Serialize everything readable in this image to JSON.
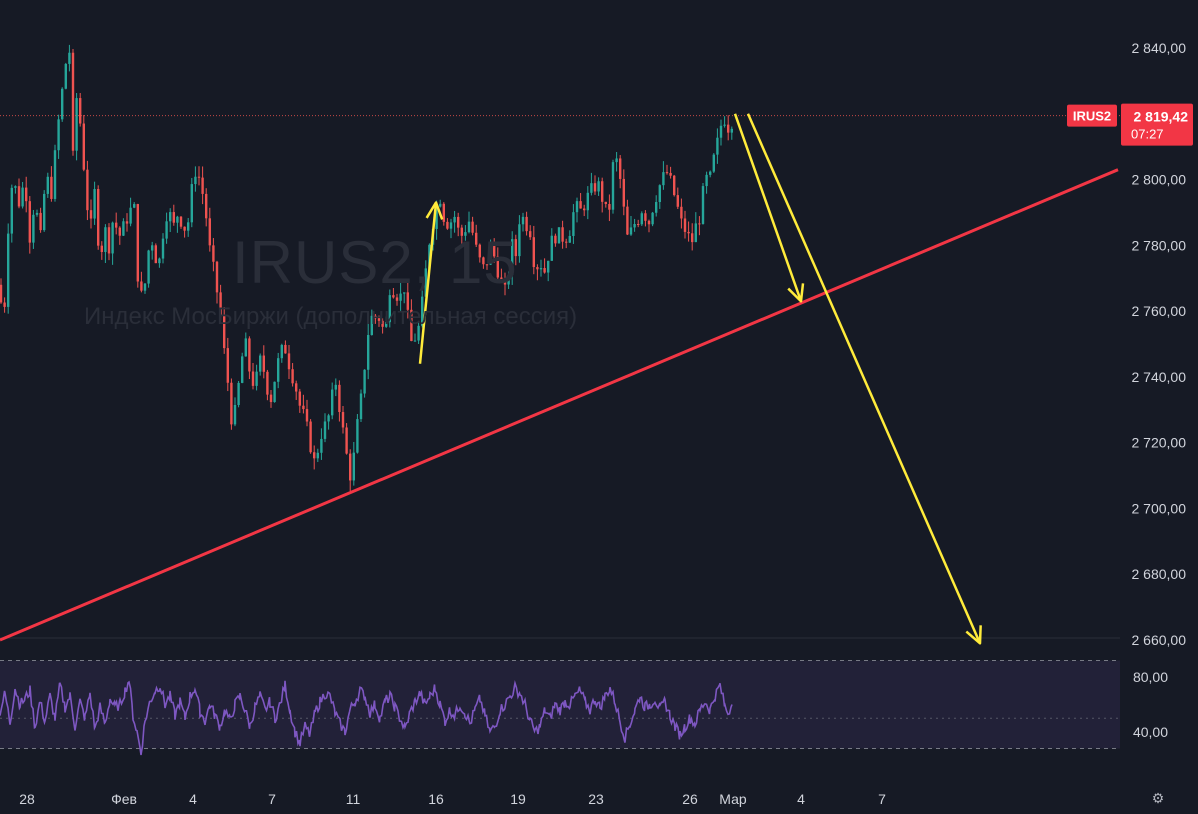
{
  "chart_data": {
    "type": "candlestick",
    "symbol_label": "IRUS2",
    "watermark": {
      "title": "IRUS2, 15",
      "subtitle": "Индекс МосБиржи (дополнительная сессия)"
    },
    "last_price": {
      "value_label": "2 819,42",
      "countdown": "07:27"
    },
    "y_axis": {
      "ticks": [
        "2 840,00",
        "2 820,00",
        "2 800,00",
        "2 780,00",
        "2 760,00",
        "2 740,00",
        "2 720,00",
        "2 700,00",
        "2 680,00",
        "2 660,00"
      ],
      "tick_values": [
        2840,
        2820,
        2800,
        2780,
        2760,
        2740,
        2720,
        2700,
        2680,
        2660
      ],
      "ylim": [
        2650,
        2851
      ]
    },
    "x_axis": {
      "labels": [
        "28",
        "Фев",
        "4",
        "7",
        "11",
        "16",
        "19",
        "23",
        "26",
        "Мар",
        "4",
        "7"
      ]
    },
    "price_path": [
      [
        0,
        2768
      ],
      [
        3,
        2752
      ],
      [
        8,
        2785
      ],
      [
        13,
        2802
      ],
      [
        18,
        2792
      ],
      [
        25,
        2800
      ],
      [
        30,
        2782
      ],
      [
        35,
        2795
      ],
      [
        40,
        2780
      ],
      [
        46,
        2802
      ],
      [
        51,
        2795
      ],
      [
        56,
        2810
      ],
      [
        60,
        2822
      ],
      [
        65,
        2833
      ],
      [
        69,
        2845
      ],
      [
        72,
        2800
      ],
      [
        76,
        2826
      ],
      [
        80,
        2818
      ],
      [
        85,
        2800
      ],
      [
        90,
        2783
      ],
      [
        95,
        2797
      ],
      [
        100,
        2774
      ],
      [
        104,
        2786
      ],
      [
        109,
        2780
      ],
      [
        114,
        2790
      ],
      [
        118,
        2782
      ],
      [
        123,
        2785
      ],
      [
        129,
        2790
      ],
      [
        134,
        2792
      ],
      [
        138,
        2770
      ],
      [
        143,
        2762
      ],
      [
        148,
        2778
      ],
      [
        153,
        2782
      ],
      [
        158,
        2772
      ],
      [
        163,
        2784
      ],
      [
        168,
        2792
      ],
      [
        173,
        2785
      ],
      [
        178,
        2790
      ],
      [
        182,
        2787
      ],
      [
        187,
        2784
      ],
      [
        191,
        2795
      ],
      [
        195,
        2803
      ],
      [
        200,
        2800
      ],
      [
        205,
        2792
      ],
      [
        210,
        2778
      ],
      [
        215,
        2770
      ],
      [
        220,
        2760
      ],
      [
        224,
        2748
      ],
      [
        228,
        2738
      ],
      [
        232,
        2726
      ],
      [
        236,
        2730
      ],
      [
        241,
        2744
      ],
      [
        245,
        2751
      ],
      [
        250,
        2741
      ],
      [
        255,
        2737
      ],
      [
        260,
        2745
      ],
      [
        265,
        2741
      ],
      [
        270,
        2732
      ],
      [
        275,
        2740
      ],
      [
        280,
        2747
      ],
      [
        285,
        2749
      ],
      [
        290,
        2743
      ],
      [
        295,
        2738
      ],
      [
        300,
        2731
      ],
      [
        305,
        2727
      ],
      [
        310,
        2720
      ],
      [
        315,
        2713
      ],
      [
        320,
        2722
      ],
      [
        325,
        2725
      ],
      [
        330,
        2729
      ],
      [
        335,
        2740
      ],
      [
        340,
        2730
      ],
      [
        345,
        2719
      ],
      [
        350,
        2710
      ],
      [
        354,
        2716
      ],
      [
        358,
        2727
      ],
      [
        362,
        2735
      ],
      [
        366,
        2748
      ],
      [
        370,
        2758
      ],
      [
        375,
        2758
      ],
      [
        380,
        2758
      ],
      [
        385,
        2752
      ],
      [
        390,
        2768
      ],
      [
        395,
        2766
      ],
      [
        400,
        2764
      ],
      [
        405,
        2768
      ],
      [
        410,
        2750
      ],
      [
        415,
        2752
      ],
      [
        420,
        2756
      ],
      [
        425,
        2770
      ],
      [
        430,
        2783
      ],
      [
        435,
        2790
      ],
      [
        440,
        2795
      ],
      [
        445,
        2787
      ],
      [
        450,
        2787
      ],
      [
        455,
        2789
      ],
      [
        460,
        2782
      ],
      [
        465,
        2785
      ],
      [
        470,
        2788
      ],
      [
        475,
        2780
      ],
      [
        480,
        2775
      ],
      [
        485,
        2772
      ],
      [
        490,
        2780
      ],
      [
        495,
        2776
      ],
      [
        500,
        2770
      ],
      [
        504,
        2764
      ],
      [
        508,
        2771
      ],
      [
        512,
        2780
      ],
      [
        516,
        2777
      ],
      [
        520,
        2790
      ],
      [
        525,
        2787
      ],
      [
        530,
        2785
      ],
      [
        535,
        2773
      ],
      [
        540,
        2775
      ],
      [
        545,
        2772
      ],
      [
        550,
        2780
      ],
      [
        555,
        2783
      ],
      [
        560,
        2783
      ],
      [
        565,
        2782
      ],
      [
        570,
        2785
      ],
      [
        575,
        2792
      ],
      [
        580,
        2790
      ],
      [
        585,
        2793
      ],
      [
        590,
        2796
      ],
      [
        595,
        2798
      ],
      [
        600,
        2798
      ],
      [
        605,
        2790
      ],
      [
        610,
        2792
      ],
      [
        614,
        2808
      ],
      [
        619,
        2803
      ],
      [
        624,
        2790
      ],
      [
        628,
        2781
      ],
      [
        633,
        2786
      ],
      [
        638,
        2788
      ],
      [
        643,
        2792
      ],
      [
        648,
        2786
      ],
      [
        653,
        2792
      ],
      [
        657,
        2796
      ],
      [
        662,
        2800
      ],
      [
        667,
        2802
      ],
      [
        672,
        2798
      ],
      [
        677,
        2792
      ],
      [
        682,
        2786
      ],
      [
        687,
        2784
      ],
      [
        691,
        2780
      ],
      [
        695,
        2785
      ],
      [
        700,
        2789
      ],
      [
        705,
        2800
      ],
      [
        710,
        2800
      ],
      [
        715,
        2808
      ],
      [
        719,
        2813
      ],
      [
        723,
        2820
      ],
      [
        728,
        2816
      ],
      [
        732,
        2818
      ]
    ],
    "rsi": {
      "levels": [
        "80,00",
        "40,00"
      ],
      "level_values": [
        80,
        40
      ],
      "band": [
        30,
        70
      ],
      "ylim": [
        20,
        88
      ],
      "path": [
        [
          0,
          55
        ],
        [
          5,
          68
        ],
        [
          10,
          47
        ],
        [
          15,
          72
        ],
        [
          20,
          60
        ],
        [
          25,
          64
        ],
        [
          30,
          70
        ],
        [
          35,
          44
        ],
        [
          40,
          62
        ],
        [
          45,
          48
        ],
        [
          50,
          66
        ],
        [
          55,
          50
        ],
        [
          60,
          74
        ],
        [
          65,
          58
        ],
        [
          70,
          66
        ],
        [
          75,
          44
        ],
        [
          80,
          62
        ],
        [
          85,
          50
        ],
        [
          90,
          68
        ],
        [
          95,
          42
        ],
        [
          100,
          58
        ],
        [
          105,
          46
        ],
        [
          110,
          64
        ],
        [
          115,
          58
        ],
        [
          120,
          60
        ],
        [
          125,
          70
        ],
        [
          129,
          78
        ],
        [
          133,
          52
        ],
        [
          137,
          40
        ],
        [
          141,
          25
        ],
        [
          145,
          48
        ],
        [
          150,
          62
        ],
        [
          155,
          70
        ],
        [
          160,
          74
        ],
        [
          165,
          60
        ],
        [
          170,
          66
        ],
        [
          175,
          52
        ],
        [
          180,
          62
        ],
        [
          185,
          50
        ],
        [
          190,
          66
        ],
        [
          195,
          72
        ],
        [
          200,
          55
        ],
        [
          205,
          48
        ],
        [
          210,
          60
        ],
        [
          215,
          52
        ],
        [
          220,
          44
        ],
        [
          225,
          56
        ],
        [
          230,
          48
        ],
        [
          235,
          60
        ],
        [
          240,
          66
        ],
        [
          245,
          56
        ],
        [
          250,
          44
        ],
        [
          255,
          58
        ],
        [
          260,
          66
        ],
        [
          265,
          56
        ],
        [
          270,
          62
        ],
        [
          275,
          50
        ],
        [
          280,
          60
        ],
        [
          285,
          74
        ],
        [
          290,
          56
        ],
        [
          295,
          40
        ],
        [
          300,
          32
        ],
        [
          305,
          44
        ],
        [
          310,
          38
        ],
        [
          315,
          54
        ],
        [
          320,
          62
        ],
        [
          325,
          68
        ],
        [
          330,
          66
        ],
        [
          335,
          54
        ],
        [
          340,
          46
        ],
        [
          345,
          40
        ],
        [
          350,
          56
        ],
        [
          355,
          62
        ],
        [
          360,
          70
        ],
        [
          365,
          66
        ],
        [
          370,
          54
        ],
        [
          375,
          60
        ],
        [
          380,
          50
        ],
        [
          385,
          62
        ],
        [
          390,
          66
        ],
        [
          395,
          58
        ],
        [
          400,
          50
        ],
        [
          405,
          42
        ],
        [
          410,
          54
        ],
        [
          415,
          62
        ],
        [
          420,
          68
        ],
        [
          425,
          60
        ],
        [
          430,
          66
        ],
        [
          435,
          72
        ],
        [
          440,
          60
        ],
        [
          445,
          48
        ],
        [
          450,
          56
        ],
        [
          455,
          52
        ],
        [
          460,
          60
        ],
        [
          465,
          54
        ],
        [
          470,
          46
        ],
        [
          475,
          56
        ],
        [
          480,
          64
        ],
        [
          485,
          52
        ],
        [
          490,
          40
        ],
        [
          495,
          44
        ],
        [
          500,
          56
        ],
        [
          505,
          60
        ],
        [
          510,
          66
        ],
        [
          515,
          72
        ],
        [
          520,
          68
        ],
        [
          525,
          60
        ],
        [
          530,
          48
        ],
        [
          535,
          40
        ],
        [
          540,
          44
        ],
        [
          545,
          56
        ],
        [
          550,
          50
        ],
        [
          555,
          60
        ],
        [
          560,
          56
        ],
        [
          565,
          62
        ],
        [
          570,
          60
        ],
        [
          575,
          66
        ],
        [
          580,
          70
        ],
        [
          585,
          62
        ],
        [
          590,
          56
        ],
        [
          595,
          64
        ],
        [
          600,
          58
        ],
        [
          605,
          66
        ],
        [
          610,
          72
        ],
        [
          615,
          62
        ],
        [
          620,
          48
        ],
        [
          625,
          36
        ],
        [
          630,
          46
        ],
        [
          635,
          56
        ],
        [
          640,
          66
        ],
        [
          645,
          58
        ],
        [
          650,
          60
        ],
        [
          655,
          64
        ],
        [
          660,
          56
        ],
        [
          665,
          62
        ],
        [
          670,
          52
        ],
        [
          675,
          44
        ],
        [
          680,
          38
        ],
        [
          685,
          44
        ],
        [
          690,
          50
        ],
        [
          695,
          46
        ],
        [
          700,
          56
        ],
        [
          705,
          62
        ],
        [
          710,
          56
        ],
        [
          715,
          66
        ],
        [
          720,
          74
        ],
        [
          725,
          58
        ],
        [
          728,
          54
        ],
        [
          732,
          60
        ]
      ]
    },
    "resistance_price": 2819.42,
    "trendline": {
      "from": [
        0,
        2660
      ],
      "to": [
        1118,
        2803
      ]
    },
    "yellow_up_arrow": {
      "from": [
        420,
        2744
      ],
      "to": [
        436,
        2793
      ]
    },
    "yellow_down_arrows": [
      {
        "from": [
          735,
          2820
        ],
        "to": [
          801,
          2763
        ]
      },
      {
        "from": [
          748,
          2820
        ],
        "to": [
          980,
          2659
        ]
      }
    ],
    "colors": {
      "background": "#161a25",
      "up": "#26a69a",
      "down": "#ef5350",
      "trendline": "#f23645",
      "arrows": "#ffeb3b",
      "rsi_line": "#7e57c2",
      "rsi_band": "#7e57c2",
      "axis_text": "#d1d4dc",
      "price_label_bg": "#f23645"
    }
  }
}
